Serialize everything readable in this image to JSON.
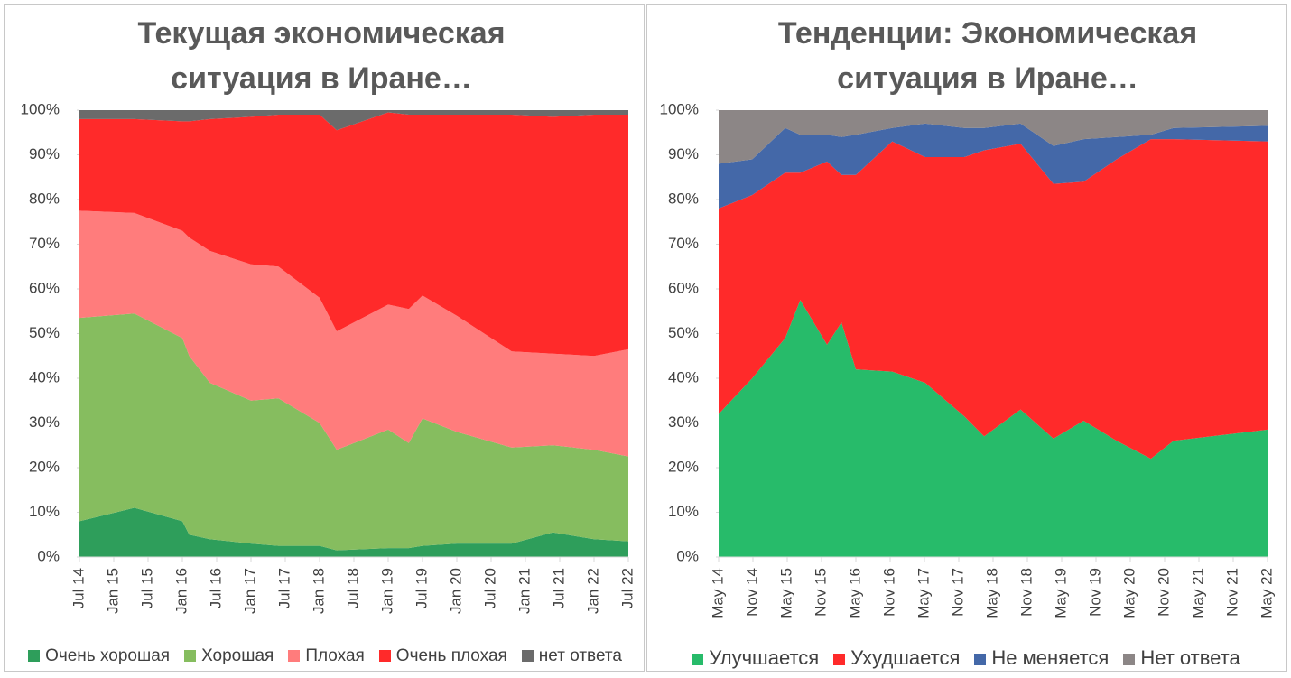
{
  "chart_data": [
    {
      "type": "stacked-area",
      "title": "Текущая экономическая ситуация в Иране…",
      "x": [
        2014.5,
        2015.3,
        2016.0,
        2016.1,
        2016.4,
        2017.0,
        2017.4,
        2018.0,
        2018.25,
        2019.0,
        2019.3,
        2019.5,
        2020.0,
        2020.8,
        2021.4,
        2022.0,
        2022.5
      ],
      "xlim": [
        2014.5,
        2022.5
      ],
      "xticks": [
        {
          "value": 2014.5,
          "label": "Jul 14"
        },
        {
          "value": 2015.0,
          "label": "Jan 15"
        },
        {
          "value": 2015.5,
          "label": "Jul 15"
        },
        {
          "value": 2016.0,
          "label": "Jan 16"
        },
        {
          "value": 2016.5,
          "label": "Jul 16"
        },
        {
          "value": 2017.0,
          "label": "Jan 17"
        },
        {
          "value": 2017.5,
          "label": "Jul 17"
        },
        {
          "value": 2018.0,
          "label": "Jan 18"
        },
        {
          "value": 2018.5,
          "label": "Jul 18"
        },
        {
          "value": 2019.0,
          "label": "Jan 19"
        },
        {
          "value": 2019.5,
          "label": "Jul 19"
        },
        {
          "value": 2020.0,
          "label": "Jan 20"
        },
        {
          "value": 2020.5,
          "label": "Jul 20"
        },
        {
          "value": 2021.0,
          "label": "Jan 21"
        },
        {
          "value": 2021.5,
          "label": "Jul 21"
        },
        {
          "value": 2022.0,
          "label": "Jan 22"
        },
        {
          "value": 2022.5,
          "label": "Jul 22"
        }
      ],
      "ylim": [
        0,
        100
      ],
      "yticks": [
        {
          "value": 0,
          "label": "0%"
        },
        {
          "value": 10,
          "label": "10%"
        },
        {
          "value": 20,
          "label": "20%"
        },
        {
          "value": 30,
          "label": "30%"
        },
        {
          "value": 40,
          "label": "40%"
        },
        {
          "value": 50,
          "label": "50%"
        },
        {
          "value": 60,
          "label": "60%"
        },
        {
          "value": 70,
          "label": "70%"
        },
        {
          "value": 80,
          "label": "80%"
        },
        {
          "value": 90,
          "label": "90%"
        },
        {
          "value": 100,
          "label": "100%"
        }
      ],
      "series": [
        {
          "name": "Очень хорошая",
          "color": "#2e9e5b",
          "values": [
            8,
            11,
            8,
            5,
            4,
            3,
            2.5,
            2.5,
            1.5,
            2,
            2,
            2.5,
            3,
            3,
            5.5,
            4,
            3.5
          ]
        },
        {
          "name": "Хорошая",
          "color": "#86bd5f",
          "values": [
            45.5,
            43.5,
            41,
            40,
            35,
            32,
            33,
            27.5,
            22.5,
            26.5,
            23.5,
            28.5,
            25,
            21.5,
            19.5,
            20,
            19
          ]
        },
        {
          "name": "Плохая",
          "color": "#ff7c7c",
          "values": [
            24,
            22.5,
            24,
            26.5,
            29.5,
            30.5,
            29.5,
            28,
            26.5,
            28,
            30,
            27.5,
            26,
            21.5,
            20.5,
            21,
            24
          ]
        },
        {
          "name": "Очень плохая",
          "color": "#ff2a2a",
          "values": [
            20.5,
            21,
            24.5,
            26,
            29.5,
            33,
            34,
            41,
            45,
            43,
            43.5,
            40.5,
            45,
            53,
            53,
            54,
            52.5
          ]
        },
        {
          "name": "нет ответа",
          "color": "#6b6b6b",
          "values": [
            2,
            2,
            2.5,
            2.5,
            2,
            1.5,
            1,
            1,
            4.5,
            0.5,
            1,
            1,
            1,
            1,
            1.5,
            1,
            1
          ]
        }
      ]
    },
    {
      "type": "stacked-area",
      "title": "Тенденции: Экономическая ситуация в Иране…",
      "x": [
        2014.33,
        2014.82,
        2015.3,
        2015.52,
        2015.91,
        2016.12,
        2016.33,
        2016.86,
        2017.34,
        2017.91,
        2018.2,
        2018.73,
        2019.21,
        2019.65,
        2020.13,
        2020.63,
        2020.96,
        2022.33
      ],
      "xlim": [
        2014.33,
        2022.33
      ],
      "xticks": [
        {
          "value": 2014.33,
          "label": "May 14"
        },
        {
          "value": 2014.83,
          "label": "Nov 14"
        },
        {
          "value": 2015.33,
          "label": "May 15"
        },
        {
          "value": 2015.83,
          "label": "Nov 15"
        },
        {
          "value": 2016.33,
          "label": "May 16"
        },
        {
          "value": 2016.83,
          "label": "Nov 16"
        },
        {
          "value": 2017.33,
          "label": "May 17"
        },
        {
          "value": 2017.83,
          "label": "Nov 17"
        },
        {
          "value": 2018.33,
          "label": "May 18"
        },
        {
          "value": 2018.83,
          "label": "Nov 18"
        },
        {
          "value": 2019.33,
          "label": "May 19"
        },
        {
          "value": 2019.83,
          "label": "Nov 19"
        },
        {
          "value": 2020.33,
          "label": "May 20"
        },
        {
          "value": 2020.83,
          "label": "Nov 20"
        },
        {
          "value": 2021.33,
          "label": "May 21"
        },
        {
          "value": 2021.83,
          "label": "Nov 21"
        },
        {
          "value": 2022.33,
          "label": "May 22"
        }
      ],
      "ylim": [
        0,
        100
      ],
      "yticks": [
        {
          "value": 0,
          "label": "0%"
        },
        {
          "value": 10,
          "label": "10%"
        },
        {
          "value": 20,
          "label": "20%"
        },
        {
          "value": 30,
          "label": "30%"
        },
        {
          "value": 40,
          "label": "40%"
        },
        {
          "value": 50,
          "label": "50%"
        },
        {
          "value": 60,
          "label": "60%"
        },
        {
          "value": 70,
          "label": "70%"
        },
        {
          "value": 80,
          "label": "80%"
        },
        {
          "value": 90,
          "label": "90%"
        },
        {
          "value": 100,
          "label": "100%"
        }
      ],
      "series": [
        {
          "name": "Улучшается",
          "color": "#27bb6a",
          "values": [
            32,
            40,
            49,
            57.5,
            47.5,
            52.5,
            42,
            41.5,
            39,
            31.5,
            27,
            33,
            26.5,
            30.5,
            26,
            22,
            26,
            28.5
          ]
        },
        {
          "name": "Ухудшается",
          "color": "#ff2a2a",
          "values": [
            46,
            41,
            37,
            28.5,
            41,
            33,
            43.5,
            51.5,
            50.5,
            58,
            64,
            59.5,
            57,
            53.5,
            63,
            71.5,
            67.5,
            64.5
          ]
        },
        {
          "name": "Не меняется",
          "color": "#4468a8",
          "values": [
            10,
            8,
            10,
            8.5,
            6,
            8.5,
            9,
            3,
            7.5,
            6.5,
            5,
            4.5,
            8.5,
            9.5,
            5,
            1,
            2.5,
            3.5
          ]
        },
        {
          "name": "Нет ответа",
          "color": "#8c8686",
          "values": [
            12,
            11,
            4,
            5.5,
            5.5,
            6,
            5.5,
            4,
            3,
            4,
            4,
            3,
            8,
            6.5,
            6,
            5.5,
            4,
            3.5
          ]
        }
      ]
    }
  ]
}
